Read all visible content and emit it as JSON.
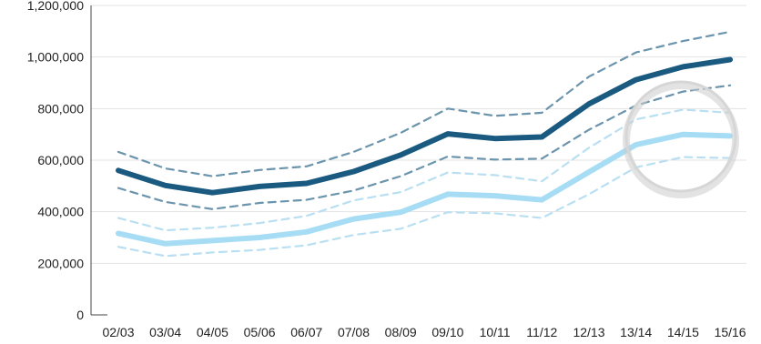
{
  "chart_data": {
    "type": "line",
    "title": "",
    "xlabel": "",
    "ylabel": "",
    "ylim": [
      0,
      1200000
    ],
    "yticks": [
      {
        "value": 0,
        "label": "0"
      },
      {
        "value": 200000,
        "label": "200,000"
      },
      {
        "value": 400000,
        "label": "400,000"
      },
      {
        "value": 600000,
        "label": "600,000"
      },
      {
        "value": 800000,
        "label": "800,000"
      },
      {
        "value": 1000000,
        "label": "1,000,000"
      },
      {
        "value": 1200000,
        "label": "1,200,000"
      }
    ],
    "categories": [
      "02/03",
      "03/04",
      "04/05",
      "05/06",
      "06/07",
      "07/08",
      "08/09",
      "09/10",
      "10/11",
      "11/12",
      "12/13",
      "13/14",
      "14/15",
      "15/16"
    ],
    "grid": "horizontal",
    "legend": "none",
    "annotations": [
      "highlight circle around 14/15–15/16"
    ],
    "series": [
      {
        "role": "dark-upper-bound",
        "style": "dashed",
        "color": "#6b94ad",
        "values": [
          632000,
          568000,
          538000,
          562000,
          576000,
          632000,
          706000,
          800000,
          772000,
          784000,
          924000,
          1018000,
          1062000,
          1098000
        ]
      },
      {
        "role": "dark-main",
        "style": "solid",
        "color": "#1a5a80",
        "values": [
          560000,
          502000,
          474000,
          498000,
          510000,
          556000,
          620000,
          702000,
          684000,
          690000,
          818000,
          912000,
          962000,
          990000
        ]
      },
      {
        "role": "dark-lower-bound",
        "style": "dashed",
        "color": "#6b94ad",
        "values": [
          492000,
          438000,
          410000,
          434000,
          446000,
          482000,
          538000,
          614000,
          602000,
          606000,
          718000,
          812000,
          866000,
          890000
        ]
      },
      {
        "role": "light-upper-bound",
        "style": "dashed",
        "color": "#b9dff2",
        "values": [
          376000,
          328000,
          338000,
          356000,
          384000,
          444000,
          476000,
          552000,
          542000,
          518000,
          648000,
          758000,
          796000,
          784000
        ]
      },
      {
        "role": "light-main",
        "style": "solid",
        "color": "#a6dcf4",
        "values": [
          316000,
          276000,
          288000,
          300000,
          322000,
          372000,
          398000,
          468000,
          462000,
          446000,
          554000,
          660000,
          700000,
          694000
        ]
      },
      {
        "role": "light-lower-bound",
        "style": "dashed",
        "color": "#b9dff2",
        "values": [
          264000,
          228000,
          242000,
          252000,
          270000,
          310000,
          334000,
          398000,
          394000,
          376000,
          468000,
          572000,
          612000,
          608000
        ]
      }
    ]
  }
}
